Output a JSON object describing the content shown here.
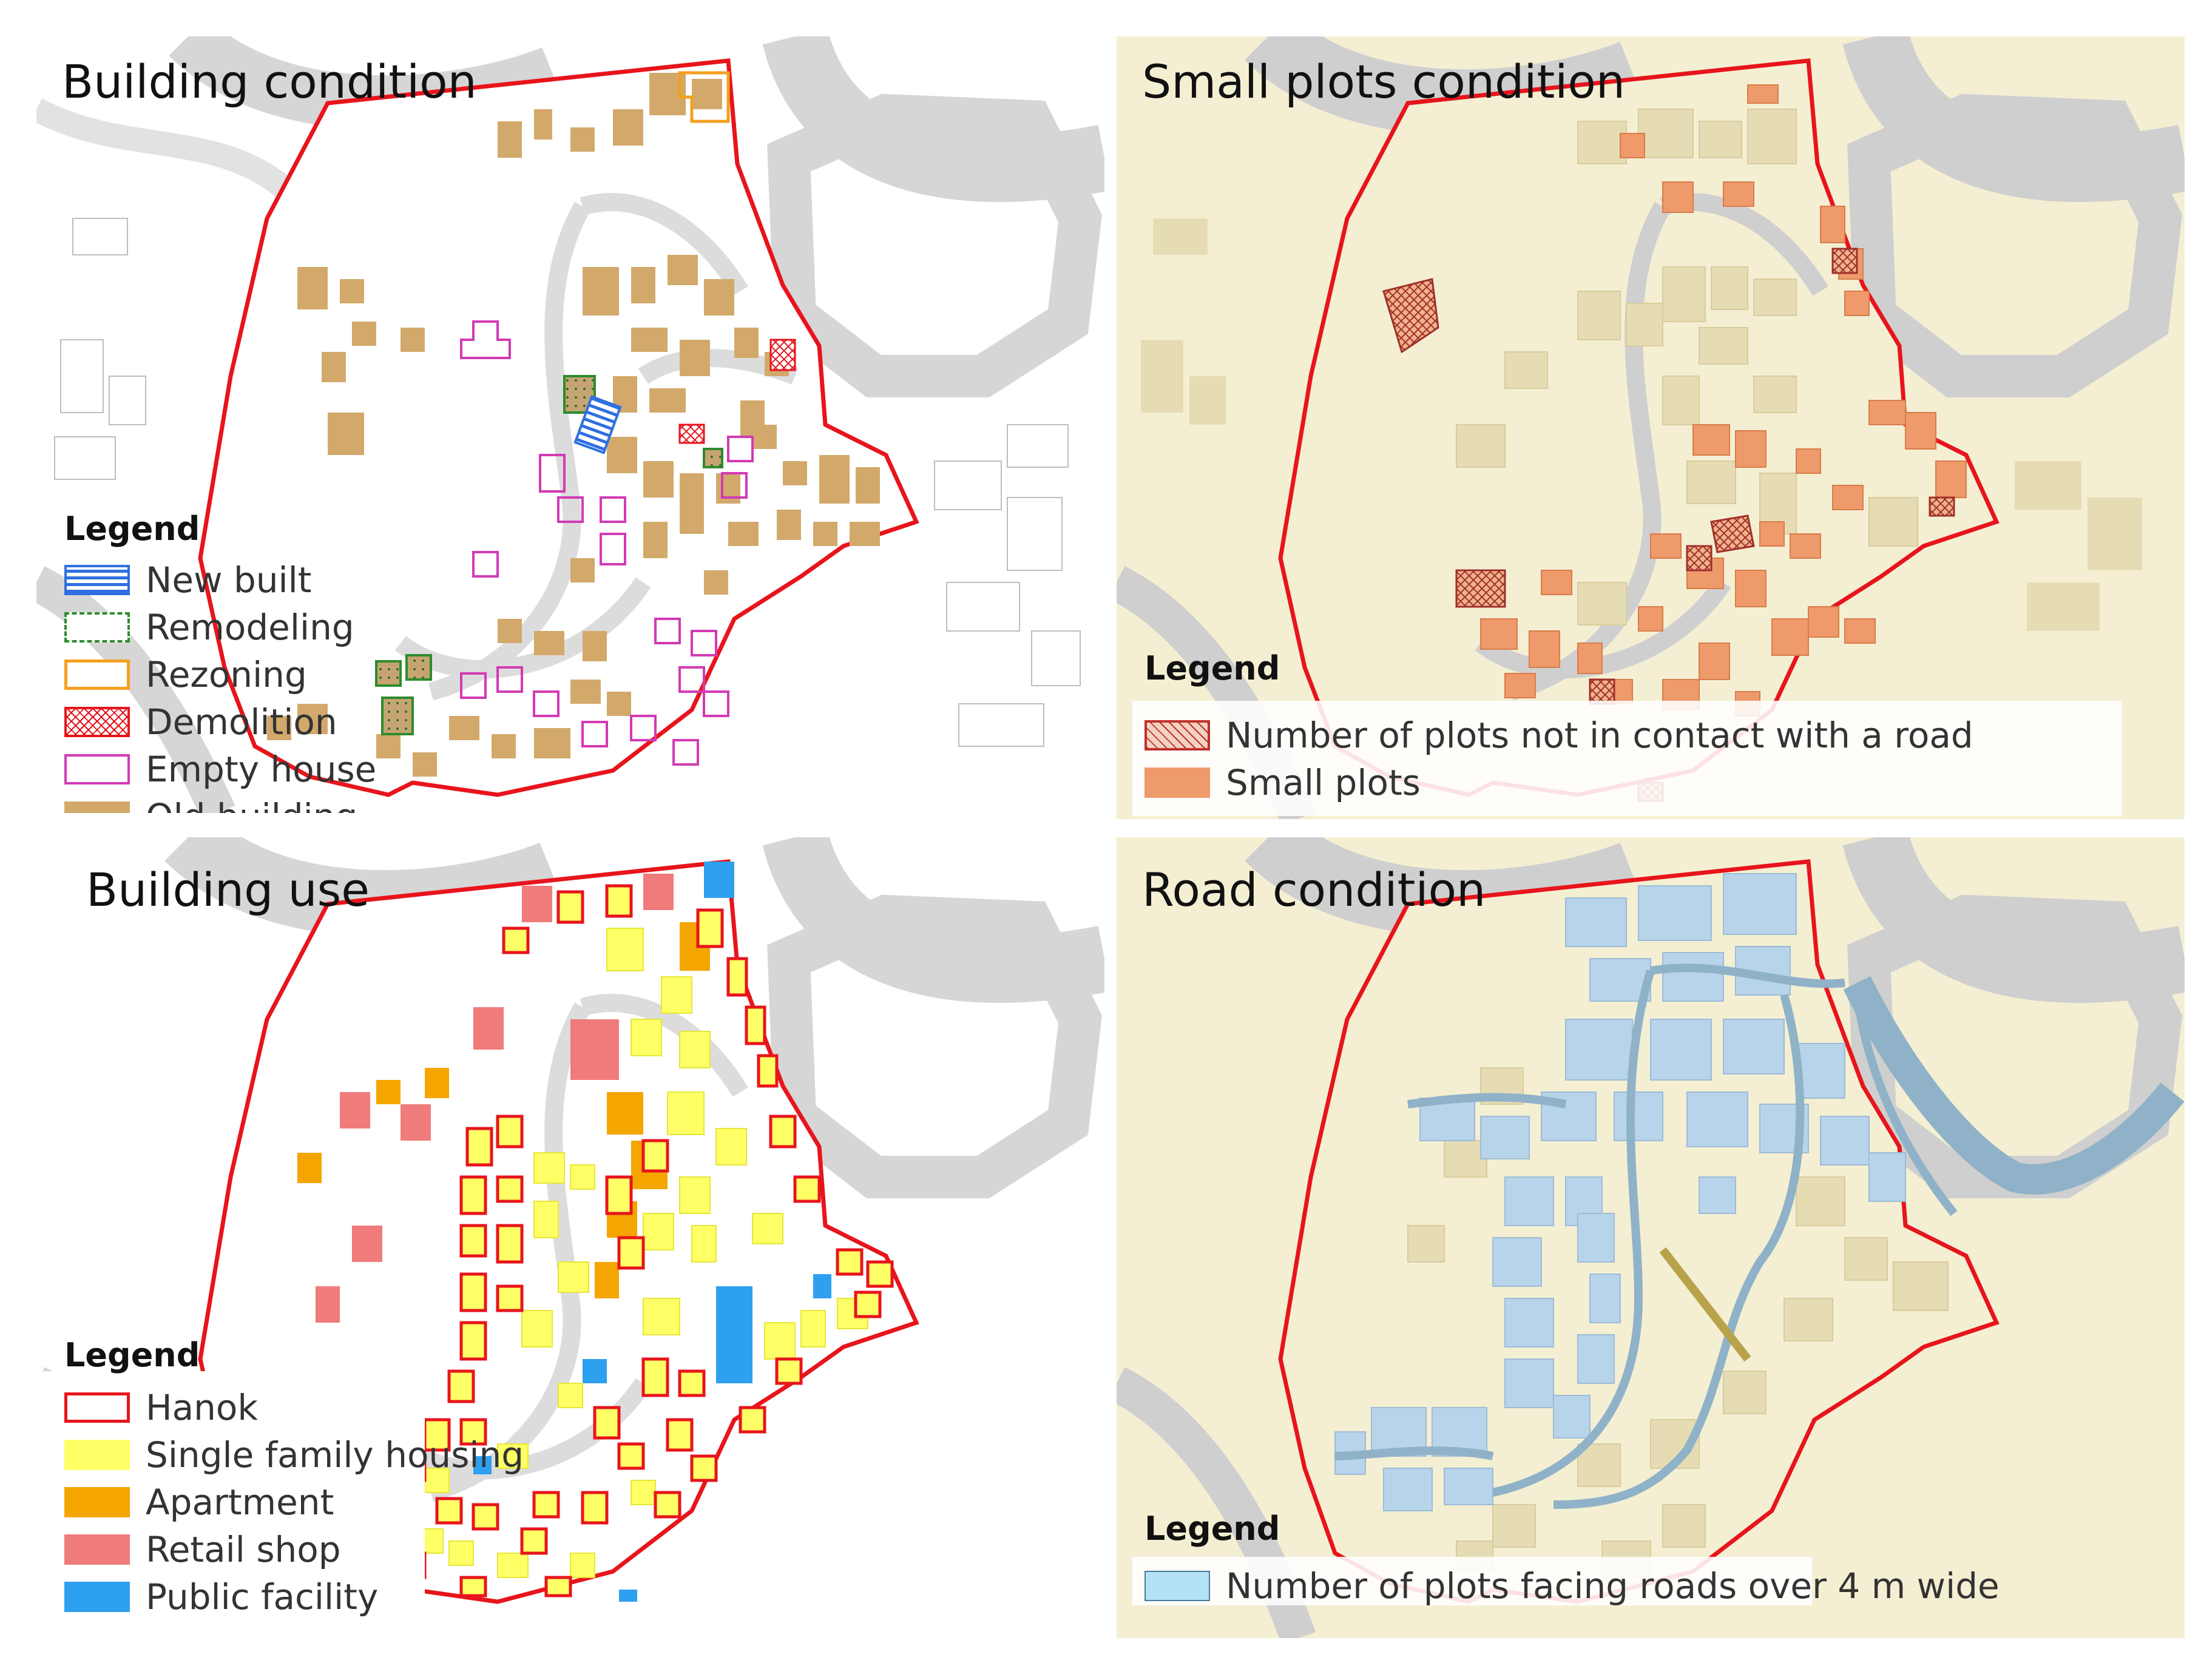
{
  "panels": {
    "building_condition": {
      "title": "Building condition",
      "legend_title": "Legend",
      "legend": [
        {
          "label": "New built",
          "swatch": "blue-stripes"
        },
        {
          "label": "Remodeling",
          "swatch": "green-dots"
        },
        {
          "label": "Rezoning",
          "swatch": "orange-outline"
        },
        {
          "label": "Demolition",
          "swatch": "red-crosshatch"
        },
        {
          "label": "Empty house",
          "swatch": "magenta-outline"
        },
        {
          "label": "Old building",
          "swatch": "tan-fill"
        }
      ]
    },
    "small_plots": {
      "title": "Small plots condition",
      "legend_title": "Legend",
      "legend": [
        {
          "label": "Number of plots not in contact with a road",
          "swatch": "red-crosshatch"
        },
        {
          "label": "Small plots",
          "swatch": "orange-fill"
        }
      ]
    },
    "building_use": {
      "title": "Building use",
      "legend_title": "Legend",
      "legend": [
        {
          "label": "Hanok",
          "swatch": "red-outline"
        },
        {
          "label": "Single family housing",
          "swatch": "yellow-fill"
        },
        {
          "label": "Apartment",
          "swatch": "orange-fill"
        },
        {
          "label": "Retail shop",
          "swatch": "pink-fill"
        },
        {
          "label": "Public facility",
          "swatch": "blue-fill"
        }
      ]
    },
    "road_condition": {
      "title": "Road condition",
      "legend_title": "Legend",
      "legend": [
        {
          "label": "Number of plots facing roads over 4 m wide",
          "swatch": "lightblue-fill"
        }
      ]
    }
  },
  "colors": {
    "boundary": "#e8141c",
    "old_building": "#d2a96b",
    "empty_house": "#d23ab4",
    "remodeling": "#2e8b2e",
    "new_built": "#2f6fe0",
    "rezoning": "#f4a020",
    "small_plot": "#ef9a6a",
    "yellow": "#ffff66",
    "apartment": "#f5a500",
    "retail": "#f07b7b",
    "public": "#2ea0f0",
    "road_blue": "#b8d4ea",
    "beige_bg": "#f4efd3"
  }
}
